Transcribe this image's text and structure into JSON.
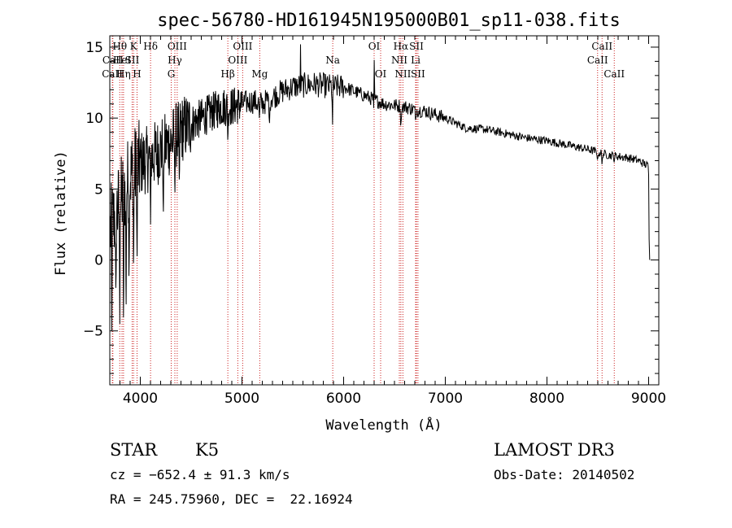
{
  "chart_data": {
    "type": "line",
    "title": "spec-56780-HD161945N195000B01_sp11-038.fits",
    "xlabel": "Wavelength (Å)",
    "ylabel": "Flux (relative)",
    "xlim": [
      3700,
      9100
    ],
    "ylim": [
      -8.8,
      15.8
    ],
    "xticks": [
      4000,
      5000,
      6000,
      7000,
      8000,
      9000
    ],
    "yticks": [
      -5,
      0,
      5,
      10,
      15
    ],
    "xtick_labels": [
      "4000",
      "5000",
      "6000",
      "7000",
      "8000",
      "9000"
    ],
    "ytick_labels": [
      "−5",
      "0",
      "5",
      "10",
      "15"
    ],
    "line_color": "#000000",
    "marker_color": "#cc2222",
    "series": [
      {
        "name": "flux",
        "continuum": [
          [
            3700,
            2.0
          ],
          [
            3800,
            4.0
          ],
          [
            3900,
            6.0
          ],
          [
            4000,
            6.8
          ],
          [
            4100,
            7.2
          ],
          [
            4200,
            7.8
          ],
          [
            4300,
            8.3
          ],
          [
            4400,
            9.2
          ],
          [
            4500,
            9.6
          ],
          [
            4600,
            10.0
          ],
          [
            4700,
            10.4
          ],
          [
            4800,
            10.8
          ],
          [
            4900,
            10.8
          ],
          [
            5000,
            11.0
          ],
          [
            5100,
            11.2
          ],
          [
            5200,
            11.0
          ],
          [
            5300,
            11.5
          ],
          [
            5400,
            11.9
          ],
          [
            5500,
            12.2
          ],
          [
            5600,
            12.3
          ],
          [
            5700,
            12.4
          ],
          [
            5800,
            12.3
          ],
          [
            5900,
            12.2
          ],
          [
            6000,
            12.2
          ],
          [
            6100,
            11.9
          ],
          [
            6200,
            11.6
          ],
          [
            6300,
            11.3
          ],
          [
            6400,
            11.0
          ],
          [
            6500,
            10.9
          ],
          [
            6600,
            10.8
          ],
          [
            6700,
            10.6
          ],
          [
            6800,
            10.5
          ],
          [
            7000,
            10.0
          ],
          [
            7200,
            9.3
          ],
          [
            7400,
            9.2
          ],
          [
            7600,
            8.9
          ],
          [
            7800,
            8.6
          ],
          [
            8000,
            8.4
          ],
          [
            8200,
            8.1
          ],
          [
            8400,
            7.8
          ],
          [
            8600,
            7.4
          ],
          [
            8800,
            7.2
          ],
          [
            8900,
            7.0
          ],
          [
            9000,
            6.6
          ]
        ],
        "absorption": [
          [
            3720,
            -5.0
          ],
          [
            3760,
            -3.0
          ],
          [
            3798,
            -4.5
          ],
          [
            3835,
            -5.8
          ],
          [
            3860,
            -4.8
          ],
          [
            3889,
            -2.5
          ],
          [
            3934,
            -1.5
          ],
          [
            3968,
            -1.0
          ],
          [
            4101,
            2.5
          ],
          [
            4226,
            2.5
          ],
          [
            4340,
            4.0
          ],
          [
            4384,
            5.0
          ],
          [
            4861,
            8.0
          ],
          [
            5172,
            9.8
          ],
          [
            5269,
            8.8
          ],
          [
            5890,
            9.0
          ],
          [
            6300,
            9.5
          ],
          [
            6563,
            8.8
          ],
          [
            6708,
            9.5
          ],
          [
            8498,
            6.8
          ],
          [
            8542,
            6.6
          ],
          [
            8662,
            6.8
          ]
        ],
        "emission": [
          [
            5577,
            15.2
          ],
          [
            6300,
            14.1
          ]
        ],
        "end_drop": [
          [
            9000,
            6.0
          ],
          [
            9005,
            1.5
          ],
          [
            9010,
            0.0
          ]
        ]
      }
    ],
    "spectral_lines": [
      {
        "label": "Hθ",
        "wavelength": 3798,
        "row": 0
      },
      {
        "label": "CaII",
        "wavelength": 3730,
        "row": 1
      },
      {
        "label": "CaII",
        "wavelength": 3725,
        "row": 2
      },
      {
        "label": "HeI",
        "wavelength": 3820,
        "row": 1
      },
      {
        "label": "Hη",
        "wavelength": 3835,
        "row": 2
      },
      {
        "label": "K",
        "wavelength": 3934,
        "row": 0
      },
      {
        "label": "SII",
        "wavelength": 3920,
        "row": 1
      },
      {
        "label": "H",
        "wavelength": 3968,
        "row": 2
      },
      {
        "label": "Hδ",
        "wavelength": 4101,
        "row": 0
      },
      {
        "label": "OIII",
        "wavelength": 4363,
        "row": 0
      },
      {
        "label": "Hγ",
        "wavelength": 4340,
        "row": 1
      },
      {
        "label": "G",
        "wavelength": 4304,
        "row": 2
      },
      {
        "label": "Hβ",
        "wavelength": 4861,
        "row": 2
      },
      {
        "label": "OIII",
        "wavelength": 5007,
        "row": 0
      },
      {
        "label": "OIII",
        "wavelength": 4959,
        "row": 1
      },
      {
        "label": "Mg",
        "wavelength": 5175,
        "row": 2
      },
      {
        "label": "Na",
        "wavelength": 5893,
        "row": 1
      },
      {
        "label": "OI",
        "wavelength": 6300,
        "row": 0
      },
      {
        "label": "OI",
        "wavelength": 6364,
        "row": 2
      },
      {
        "label": "Hα",
        "wavelength": 6563,
        "row": 0
      },
      {
        "label": "NII",
        "wavelength": 6548,
        "row": 1
      },
      {
        "label": "NII",
        "wavelength": 6583,
        "row": 2
      },
      {
        "label": "SII",
        "wavelength": 6716,
        "row": 0
      },
      {
        "label": "Li",
        "wavelength": 6708,
        "row": 1
      },
      {
        "label": "SII",
        "wavelength": 6731,
        "row": 2
      },
      {
        "label": "CaII",
        "wavelength": 8542,
        "row": 0
      },
      {
        "label": "CaII",
        "wavelength": 8498,
        "row": 1
      },
      {
        "label": "CaII",
        "wavelength": 8662,
        "row": 2
      }
    ]
  },
  "info": {
    "class_label": "STAR",
    "subclass": "K5",
    "survey": "LAMOST DR3",
    "cz": "cz = −652.4 ± 91.3 km/s",
    "obs_date": "Obs-Date: 20140502",
    "coords": "RA = 245.75960, DEC =  22.16924"
  }
}
